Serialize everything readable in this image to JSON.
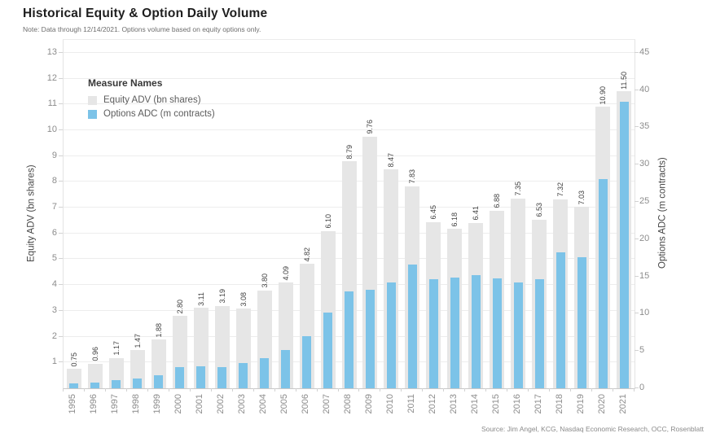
{
  "header": {
    "title": "Historical Equity & Option Daily Volume",
    "note": "Note: Data through 12/14/2021. Options volume based on equity options only."
  },
  "legend": {
    "title": "Measure Names",
    "items": [
      {
        "label": "Equity ADV (bn shares)",
        "color": "#e6e6e6"
      },
      {
        "label": "Options ADC (m contracts)",
        "color": "#7cc3e8"
      }
    ]
  },
  "source": "Source: Jim Angel, KCG, Nasdaq Economic Research, OCC, Rosenblatt",
  "colors": {
    "equity_bar": "#e6e6e6",
    "options_bar": "#7cc3e8",
    "gridline": "#ededed",
    "tick_text": "#8c8c8c",
    "label_text": "#3f3f3f"
  },
  "chart_data": {
    "type": "bar",
    "title": "Historical Equity & Option Daily Volume",
    "subtitle": "Note: Data through 12/14/2021. Options volume based on equity options only.",
    "categories": [
      "1995",
      "1996",
      "1997",
      "1998",
      "1999",
      "2000",
      "2001",
      "2002",
      "2003",
      "2004",
      "2005",
      "2006",
      "2007",
      "2008",
      "2009",
      "2010",
      "2011",
      "2012",
      "2013",
      "2014",
      "2015",
      "2016",
      "2017",
      "2018",
      "2019",
      "2020",
      "2021"
    ],
    "series": [
      {
        "name": "Equity ADV (bn shares)",
        "axis": "left",
        "values": [
          0.75,
          0.96,
          1.17,
          1.47,
          1.88,
          2.8,
          3.11,
          3.19,
          3.08,
          3.8,
          4.09,
          4.82,
          6.1,
          8.79,
          9.76,
          8.47,
          7.83,
          6.45,
          6.18,
          6.41,
          6.88,
          7.35,
          6.53,
          7.32,
          7.03,
          10.9,
          11.5
        ],
        "data_labels": [
          "0.75",
          "0.96",
          "1.17",
          "1.47",
          "1.88",
          "2.80",
          "3.11",
          "3.19",
          "3.08",
          "3.80",
          "4.09",
          "4.82",
          "6.10",
          "8.79",
          "9.76",
          "8.47",
          "7.83",
          "6.45",
          "6.18",
          "6.41",
          "6.88",
          "7.35",
          "6.53",
          "7.32",
          "7.03",
          "10.90",
          "11.50"
        ]
      },
      {
        "name": "Options ADC (m contracts)",
        "axis": "right",
        "values": [
          0.7,
          0.8,
          1.1,
          1.3,
          1.8,
          2.8,
          3.0,
          2.8,
          3.4,
          4.0,
          5.1,
          7.0,
          10.2,
          13.0,
          13.2,
          14.2,
          16.6,
          14.6,
          14.8,
          15.2,
          14.7,
          14.2,
          14.6,
          18.2,
          17.6,
          28.1,
          38.4
        ],
        "data_labels": []
      }
    ],
    "axes": {
      "left": {
        "title": "Equity ADV (bn shares)",
        "ticks": [
          1,
          2,
          3,
          4,
          5,
          6,
          7,
          8,
          9,
          10,
          11,
          12,
          13
        ],
        "ylim": [
          0,
          13.5
        ]
      },
      "right": {
        "title": "Options ADC (m contracts)",
        "ticks": [
          0,
          5,
          10,
          15,
          20,
          25,
          30,
          35,
          40,
          45
        ],
        "ylim": [
          0,
          46.73
        ]
      }
    },
    "grid": true,
    "legend_position": "top-left-inside"
  }
}
